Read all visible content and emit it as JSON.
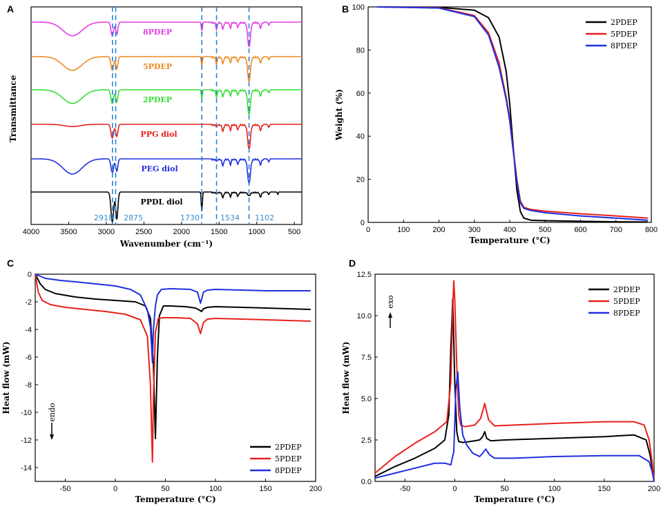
{
  "colors": {
    "black": "#000000",
    "red": "#e8201a",
    "blue": "#1f2ee0",
    "magenta": "#e23ee6",
    "orange": "#ee8a1e",
    "green": "#33e02e",
    "guide": "#2b7fd6"
  },
  "chart_data": [
    {
      "panel": "A",
      "type": "line",
      "title": "",
      "xlabel": "Wavenumber (cm⁻¹)",
      "ylabel": "Transmittance",
      "xlim": [
        4000,
        400
      ],
      "x_reversed": true,
      "xticks": [
        "4000",
        "3500",
        "3000",
        "2500",
        "2000",
        "1500",
        "1000",
        "500"
      ],
      "series": [
        {
          "name": "8PDEP",
          "color": "#e23ee6",
          "offset": 5
        },
        {
          "name": "5PDEP",
          "color": "#ee8a1e",
          "offset": 4
        },
        {
          "name": "2PDEP",
          "color": "#33e02e",
          "offset": 3
        },
        {
          "name": "PPG diol",
          "color": "#e8201a",
          "offset": 2
        },
        {
          "name": "PEG diol",
          "color": "#1f2ee0",
          "offset": 1
        },
        {
          "name": "PPDL diol",
          "color": "#000000",
          "offset": 0
        }
      ],
      "guide_lines": [
        "2918",
        "2875",
        "1730",
        "1534",
        "1102"
      ]
    },
    {
      "panel": "B",
      "type": "line",
      "title": "",
      "xlabel": "Temperature (°C)",
      "ylabel": "Weight (%)",
      "xlim": [
        0,
        800
      ],
      "ylim": [
        0,
        100
      ],
      "xticks": [
        "0",
        "100",
        "200",
        "300",
        "400",
        "500",
        "600",
        "700",
        "800"
      ],
      "yticks": [
        "0",
        "20",
        "40",
        "60",
        "80",
        "100"
      ],
      "legend": [
        "2PDEP",
        "5PDEP",
        "8PDEP"
      ],
      "series": [
        {
          "name": "2PDEP",
          "color": "#000000",
          "x": [
            25,
            200,
            300,
            340,
            370,
            390,
            400,
            410,
            420,
            430,
            440,
            460,
            500,
            600,
            700,
            790
          ],
          "y": [
            100,
            99.8,
            98.5,
            95,
            86,
            70,
            55,
            35,
            15,
            5,
            2,
            1,
            0.8,
            0.5,
            0.3,
            0.2
          ]
        },
        {
          "name": "5PDEP",
          "color": "#e8201a",
          "x": [
            25,
            200,
            300,
            340,
            370,
            390,
            400,
            410,
            420,
            430,
            440,
            460,
            500,
            600,
            700,
            790
          ],
          "y": [
            100,
            99.6,
            96,
            88,
            74,
            58,
            48,
            34,
            20,
            10,
            7,
            6,
            5.2,
            4,
            3,
            2
          ]
        },
        {
          "name": "8PDEP",
          "color": "#1f2ee0",
          "x": [
            25,
            200,
            300,
            340,
            370,
            390,
            400,
            410,
            420,
            430,
            440,
            460,
            500,
            600,
            700,
            790
          ],
          "y": [
            100,
            99.5,
            95.5,
            87,
            72,
            57,
            47,
            33,
            19,
            9,
            6.5,
            5.5,
            4.5,
            3,
            2,
            1
          ]
        }
      ]
    },
    {
      "panel": "C",
      "type": "line",
      "title": "",
      "xlabel": "Temperature (°C)",
      "ylabel": "Heat flow (mW)",
      "annotation": "endo",
      "xlim": [
        -80,
        200
      ],
      "ylim": [
        -15,
        0
      ],
      "xticks": [
        "-50",
        "0",
        "50",
        "100",
        "150",
        "200"
      ],
      "yticks": [
        "0",
        "-2",
        "-4",
        "-6",
        "-8",
        "-10",
        "-12",
        "-14"
      ],
      "legend": [
        "2PDEP",
        "5PDEP",
        "8PDEP"
      ],
      "series": [
        {
          "name": "2PDEP",
          "color": "#000000",
          "x": [
            -80,
            -75,
            -70,
            -60,
            -40,
            -20,
            0,
            20,
            30,
            35,
            38,
            40,
            42,
            44,
            48,
            55,
            70,
            80,
            84,
            86,
            88,
            92,
            100,
            150,
            195
          ],
          "y": [
            0,
            -0.7,
            -1.1,
            -1.4,
            -1.65,
            -1.8,
            -1.9,
            -2.0,
            -2.3,
            -3.2,
            -6.5,
            -11.9,
            -6.0,
            -3.0,
            -2.3,
            -2.3,
            -2.35,
            -2.45,
            -2.6,
            -2.7,
            -2.5,
            -2.4,
            -2.35,
            -2.45,
            -2.55
          ]
        },
        {
          "name": "5PDEP",
          "color": "#e8201a",
          "x": [
            -80,
            -77,
            -73,
            -65,
            -50,
            -30,
            -10,
            10,
            25,
            32,
            35,
            37,
            38,
            40,
            43,
            48,
            60,
            75,
            82,
            85,
            88,
            92,
            100,
            150,
            195
          ],
          "y": [
            0,
            -1.3,
            -1.9,
            -2.2,
            -2.4,
            -2.55,
            -2.7,
            -2.9,
            -3.3,
            -4.5,
            -8.0,
            -13.6,
            -9.0,
            -4.2,
            -3.2,
            -3.15,
            -3.15,
            -3.2,
            -3.6,
            -4.3,
            -3.5,
            -3.25,
            -3.2,
            -3.3,
            -3.4
          ]
        },
        {
          "name": "8PDEP",
          "color": "#1f2ee0",
          "x": [
            -80,
            -70,
            -55,
            -40,
            -20,
            0,
            15,
            25,
            32,
            35,
            37,
            38,
            40,
            42,
            46,
            55,
            75,
            82,
            85,
            88,
            92,
            100,
            150,
            195
          ],
          "y": [
            0,
            -0.3,
            -0.45,
            -0.55,
            -0.7,
            -0.85,
            -1.1,
            -1.5,
            -2.6,
            -3.8,
            -6.4,
            -4.0,
            -2.3,
            -1.5,
            -1.1,
            -1.05,
            -1.1,
            -1.3,
            -2.1,
            -1.3,
            -1.15,
            -1.1,
            -1.2,
            -1.2
          ]
        }
      ]
    },
    {
      "panel": "D",
      "type": "line",
      "title": "",
      "xlabel": "Temperature (°C)",
      "ylabel": "Heat flow (mW)",
      "annotation": "exo",
      "xlim": [
        -80,
        200
      ],
      "ylim": [
        0,
        12.5
      ],
      "xticks": [
        "-50",
        "0",
        "50",
        "100",
        "150",
        "200"
      ],
      "yticks": [
        "0.0",
        "2.5",
        "5.0",
        "7.5",
        "10.0",
        "12.5"
      ],
      "legend": [
        "2PDEP",
        "5PDEP",
        "8PDEP"
      ],
      "series": [
        {
          "name": "2PDEP",
          "color": "#000000",
          "x": [
            -80,
            -60,
            -40,
            -20,
            -10,
            -6,
            -4,
            -2,
            0,
            2,
            4,
            8,
            15,
            25,
            28,
            30,
            32,
            36,
            50,
            100,
            150,
            180,
            192,
            196,
            198,
            200
          ],
          "y": [
            0.3,
            0.9,
            1.4,
            2.0,
            2.5,
            4.0,
            8.0,
            11.0,
            6.0,
            3.0,
            2.4,
            2.35,
            2.4,
            2.5,
            2.7,
            3.0,
            2.6,
            2.45,
            2.5,
            2.6,
            2.7,
            2.8,
            2.5,
            1.6,
            0.8,
            0.0
          ]
        },
        {
          "name": "5PDEP",
          "color": "#e8201a",
          "x": [
            -80,
            -60,
            -40,
            -20,
            -8,
            -4,
            -2,
            -1,
            0,
            2,
            4,
            6,
            10,
            20,
            26,
            30,
            34,
            40,
            60,
            100,
            150,
            180,
            190,
            195,
            198,
            200
          ],
          "y": [
            0.5,
            1.5,
            2.3,
            3.0,
            3.6,
            6.0,
            10.5,
            12.1,
            11.0,
            7.0,
            4.0,
            3.4,
            3.3,
            3.4,
            3.8,
            4.7,
            3.7,
            3.35,
            3.4,
            3.5,
            3.6,
            3.6,
            3.4,
            2.5,
            1.2,
            0.0
          ]
        },
        {
          "name": "8PDEP",
          "color": "#1f2ee0",
          "x": [
            -80,
            -60,
            -40,
            -20,
            -10,
            -4,
            -1,
            0,
            1,
            3,
            5,
            8,
            12,
            18,
            25,
            28,
            31,
            35,
            40,
            60,
            100,
            150,
            185,
            195,
            198,
            200
          ],
          "y": [
            0.2,
            0.5,
            0.8,
            1.1,
            1.1,
            1.0,
            1.8,
            3.5,
            5.5,
            6.6,
            4.5,
            2.8,
            2.2,
            1.7,
            1.5,
            1.7,
            1.95,
            1.6,
            1.4,
            1.4,
            1.5,
            1.55,
            1.55,
            1.2,
            0.6,
            0.0
          ]
        }
      ]
    }
  ]
}
